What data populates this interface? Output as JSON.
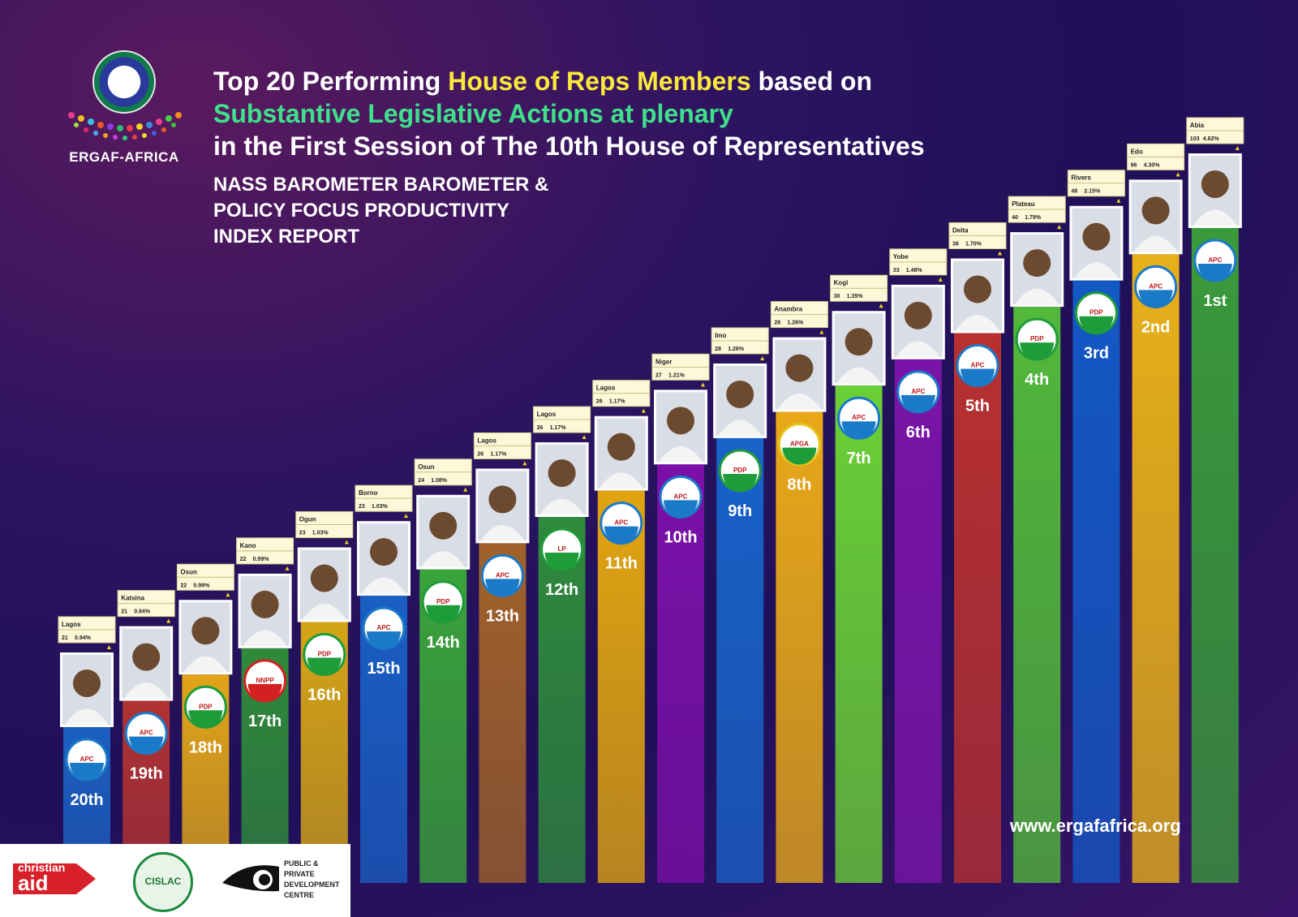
{
  "header": {
    "org_name": "ERGAF-AFRICA",
    "title_part1": "Top 20 Performing ",
    "title_highlight": "House of Reps Members",
    "title_part2": " based on",
    "title_line2": "Substantive Legislative Actions at plenary",
    "title_line3": "in the First Session of The 10th House of Representatives",
    "subtitle_line1": "NASS BAROMETER BAROMETER &",
    "subtitle_line2": "POLICY FOCUS PRODUCTIVITY",
    "subtitle_line3": "INDEX REPORT"
  },
  "footer": {
    "website": "www.ergafafrica.org",
    "sponsor1": "christian aid",
    "sponsor1_small": "christian",
    "sponsor1_big": "aid",
    "sponsor2": "CISLAC",
    "sponsor3_line1": "PUBLIC &",
    "sponsor3_line2": "PRIVATE",
    "sponsor3_line3": "DEVELOPMENT",
    "sponsor3_line4": "CENTRE"
  },
  "colors": {
    "background": "#24125c",
    "title_highlight": "#fbe83c",
    "title_green": "#3fe08a"
  },
  "chart_data": {
    "type": "bar",
    "categories": [
      "20th",
      "19th",
      "18th",
      "17th",
      "16th",
      "15th",
      "14th",
      "13th",
      "12th",
      "11th",
      "10th",
      "9th",
      "8th",
      "7th",
      "6th",
      "5th",
      "4th",
      "3rd",
      "2nd",
      "1st"
    ],
    "states": [
      "Lagos",
      "Katsina",
      "Osun",
      "Kano",
      "Ogun",
      "Borno",
      "Osun",
      "Lagos",
      "Lagos",
      "Lagos",
      "Niger",
      "Imo",
      "Anambra",
      "Kogi",
      "Yobe",
      "Delta",
      "Plateau",
      "Rivers",
      "Edo",
      "Abia"
    ],
    "values": [
      21,
      21,
      22,
      22,
      23,
      23,
      24,
      26,
      26,
      26,
      27,
      28,
      28,
      30,
      33,
      38,
      40,
      48,
      96,
      103
    ],
    "percentages": [
      "0.94%",
      "0.94%",
      "0.99%",
      "0.99%",
      "1.03%",
      "1.03%",
      "1.08%",
      "1.17%",
      "1.17%",
      "1.17%",
      "1.21%",
      "1.26%",
      "1.26%",
      "1.35%",
      "1.48%",
      "1.70%",
      "1.79%",
      "2.15%",
      "4.30%",
      "4.62%"
    ],
    "parties": [
      "APC",
      "APC",
      "PDP",
      "NNPP",
      "PDP",
      "APC",
      "PDP",
      "APC",
      "LP",
      "APC",
      "APC",
      "PDP",
      "APGA",
      "APC",
      "APC",
      "APC",
      "PDP",
      "PDP",
      "APC",
      "APC"
    ],
    "bar_colors": [
      "#1c5fc0",
      "#b03232",
      "#e0a418",
      "#2f8a3a",
      "#d4a416",
      "#1a5ec4",
      "#3aa33a",
      "#a0622a",
      "#2e8a3c",
      "#e0a410",
      "#7a10a8",
      "#1862c8",
      "#e8a818",
      "#6ad036",
      "#7a14a8",
      "#b83030",
      "#52b83a",
      "#1458c4",
      "#e8b018",
      "#3a9a3a"
    ],
    "party_colors": {
      "APC": "#1a7ac8",
      "PDP": "#1e9c3a",
      "NNPP": "#d42020",
      "LP": "#1e9c3a",
      "APGA": "#e8c418"
    }
  }
}
